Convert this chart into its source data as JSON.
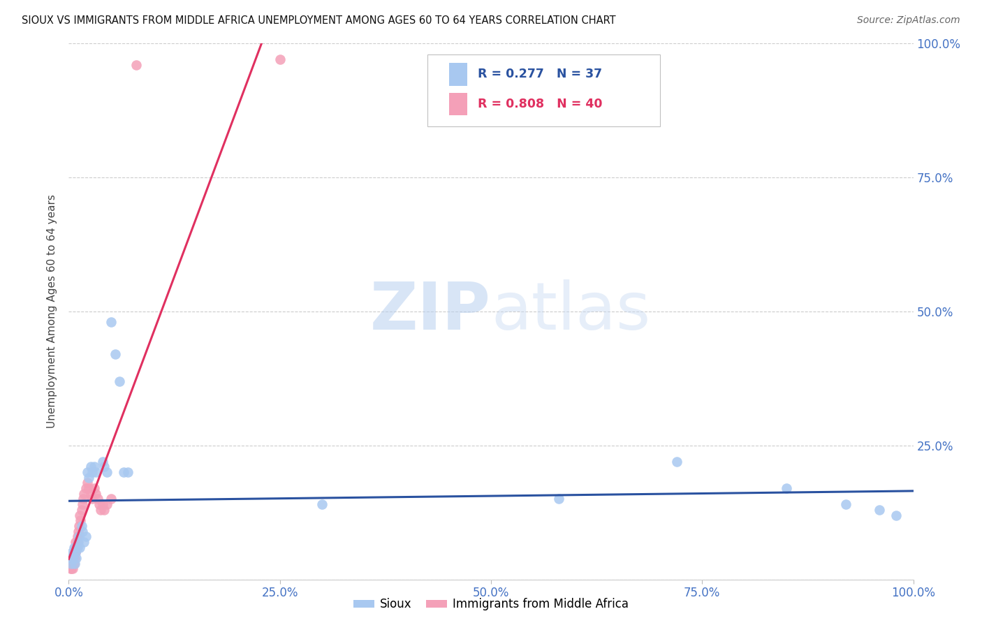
{
  "title": "SIOUX VS IMMIGRANTS FROM MIDDLE AFRICA UNEMPLOYMENT AMONG AGES 60 TO 64 YEARS CORRELATION CHART",
  "source": "Source: ZipAtlas.com",
  "ylabel": "Unemployment Among Ages 60 to 64 years",
  "background_color": "#ffffff",
  "watermark_zip": "ZIP",
  "watermark_atlas": "atlas",
  "legend_blue_r": "0.277",
  "legend_blue_n": "37",
  "legend_pink_r": "0.808",
  "legend_pink_n": "40",
  "sioux_color": "#a8c8f0",
  "immigrants_color": "#f4a0b8",
  "sioux_line_color": "#2a52a0",
  "immigrants_line_color": "#e03060",
  "tick_color": "#4472c4",
  "sioux_x": [
    0.002,
    0.003,
    0.004,
    0.005,
    0.006,
    0.007,
    0.008,
    0.009,
    0.01,
    0.011,
    0.012,
    0.013,
    0.015,
    0.016,
    0.018,
    0.02,
    0.022,
    0.024,
    0.026,
    0.028,
    0.03,
    0.032,
    0.04,
    0.042,
    0.045,
    0.05,
    0.055,
    0.06,
    0.065,
    0.07,
    0.3,
    0.58,
    0.72,
    0.85,
    0.92,
    0.96,
    0.98
  ],
  "sioux_y": [
    0.04,
    0.03,
    0.05,
    0.04,
    0.06,
    0.03,
    0.05,
    0.04,
    0.06,
    0.07,
    0.08,
    0.06,
    0.1,
    0.09,
    0.07,
    0.08,
    0.2,
    0.19,
    0.21,
    0.2,
    0.21,
    0.2,
    0.22,
    0.21,
    0.2,
    0.48,
    0.42,
    0.37,
    0.2,
    0.2,
    0.14,
    0.15,
    0.22,
    0.17,
    0.14,
    0.13,
    0.12
  ],
  "immigrants_x": [
    0.002,
    0.003,
    0.003,
    0.004,
    0.004,
    0.005,
    0.005,
    0.006,
    0.006,
    0.007,
    0.007,
    0.008,
    0.008,
    0.009,
    0.01,
    0.01,
    0.011,
    0.012,
    0.013,
    0.014,
    0.015,
    0.016,
    0.017,
    0.018,
    0.02,
    0.022,
    0.024,
    0.026,
    0.028,
    0.03,
    0.032,
    0.034,
    0.036,
    0.038,
    0.04,
    0.042,
    0.045,
    0.05,
    0.08,
    0.25
  ],
  "immigrants_y": [
    0.02,
    0.02,
    0.03,
    0.03,
    0.04,
    0.02,
    0.04,
    0.03,
    0.05,
    0.04,
    0.06,
    0.05,
    0.07,
    0.06,
    0.07,
    0.08,
    0.09,
    0.1,
    0.12,
    0.11,
    0.13,
    0.14,
    0.15,
    0.16,
    0.17,
    0.18,
    0.17,
    0.16,
    0.15,
    0.17,
    0.16,
    0.15,
    0.14,
    0.13,
    0.14,
    0.13,
    0.14,
    0.15,
    0.96,
    0.97
  ],
  "xlim": [
    0.0,
    1.0
  ],
  "ylim": [
    0.0,
    1.0
  ],
  "xtick_positions": [
    0.0,
    0.25,
    0.5,
    0.75,
    1.0
  ],
  "xtick_labels": [
    "0.0%",
    "25.0%",
    "50.0%",
    "75.0%",
    "100.0%"
  ],
  "ytick_positions": [
    0.0,
    0.25,
    0.5,
    0.75,
    1.0
  ],
  "ytick_labels": [
    "",
    "25.0%",
    "50.0%",
    "75.0%",
    "100.0%"
  ]
}
